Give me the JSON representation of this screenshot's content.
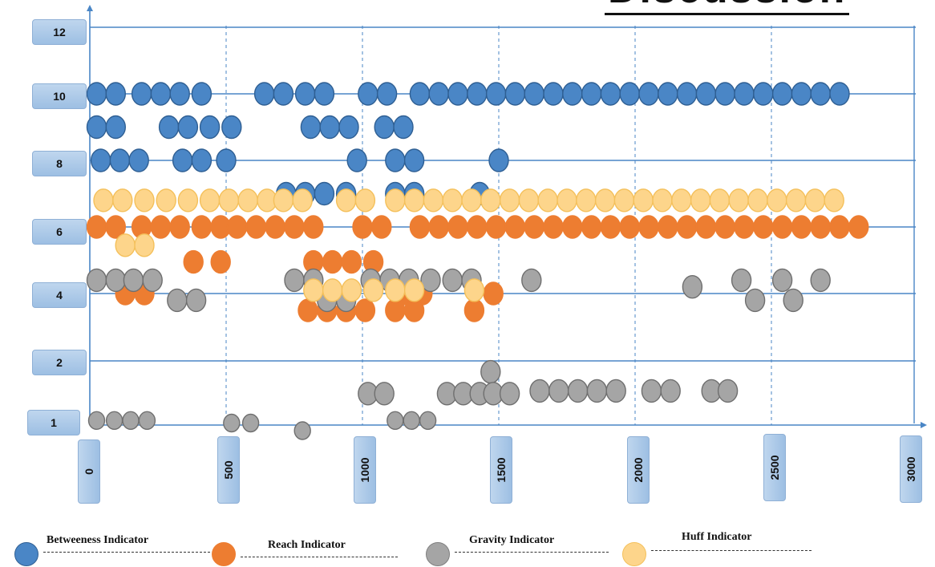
{
  "title_fragment": "Discussion",
  "chart_data": {
    "type": "scatter",
    "x_ticks": [
      "0",
      "500",
      "1000",
      "1500",
      "2000",
      "2500",
      "3000"
    ],
    "y_ticks": [
      "12",
      "10",
      "8",
      "6",
      "4",
      "2",
      "1"
    ],
    "xlim": [
      0,
      3000
    ],
    "series": [
      {
        "name": "Betweeness Indicator",
        "color": "#4a86c6",
        "points": [
          [
            25,
            10
          ],
          [
            95,
            10
          ],
          [
            190,
            10
          ],
          [
            260,
            10
          ],
          [
            330,
            10
          ],
          [
            410,
            10
          ],
          [
            640,
            10
          ],
          [
            710,
            10
          ],
          [
            790,
            10
          ],
          [
            860,
            10
          ],
          [
            1020,
            10
          ],
          [
            1090,
            10
          ],
          [
            1210,
            10
          ],
          [
            1280,
            10
          ],
          [
            1350,
            10
          ],
          [
            1420,
            10
          ],
          [
            1490,
            10
          ],
          [
            1560,
            10
          ],
          [
            1630,
            10
          ],
          [
            1700,
            10
          ],
          [
            1770,
            10
          ],
          [
            1840,
            10
          ],
          [
            1910,
            10
          ],
          [
            1980,
            10
          ],
          [
            2050,
            10
          ],
          [
            2120,
            10
          ],
          [
            2190,
            10
          ],
          [
            2260,
            10
          ],
          [
            2330,
            10
          ],
          [
            2400,
            10
          ],
          [
            2470,
            10
          ],
          [
            2540,
            10
          ],
          [
            2610,
            10
          ],
          [
            2680,
            10
          ],
          [
            2750,
            10
          ],
          [
            25,
            9
          ],
          [
            95,
            9
          ],
          [
            290,
            9
          ],
          [
            360,
            9
          ],
          [
            440,
            9
          ],
          [
            520,
            9
          ],
          [
            810,
            9
          ],
          [
            880,
            9
          ],
          [
            950,
            9
          ],
          [
            1080,
            9
          ],
          [
            1150,
            9
          ],
          [
            40,
            8
          ],
          [
            110,
            8
          ],
          [
            180,
            8
          ],
          [
            340,
            8
          ],
          [
            410,
            8
          ],
          [
            500,
            8
          ],
          [
            980,
            8
          ],
          [
            1120,
            8
          ],
          [
            1190,
            8
          ],
          [
            1500,
            8
          ],
          [
            720,
            7
          ],
          [
            790,
            7
          ],
          [
            860,
            7
          ],
          [
            940,
            7
          ],
          [
            1120,
            7
          ],
          [
            1190,
            7
          ],
          [
            1430,
            7
          ]
        ]
      },
      {
        "name": "Reach Indicator",
        "color": "#ed7d31",
        "points": [
          [
            25,
            6
          ],
          [
            95,
            6
          ],
          [
            190,
            6
          ],
          [
            260,
            6
          ],
          [
            330,
            6
          ],
          [
            410,
            6
          ],
          [
            480,
            6
          ],
          [
            540,
            6
          ],
          [
            610,
            6
          ],
          [
            680,
            6
          ],
          [
            750,
            6
          ],
          [
            820,
            6
          ],
          [
            1000,
            6
          ],
          [
            1070,
            6
          ],
          [
            1210,
            6
          ],
          [
            1280,
            6
          ],
          [
            1350,
            6
          ],
          [
            1420,
            6
          ],
          [
            1490,
            6
          ],
          [
            1560,
            6
          ],
          [
            1630,
            6
          ],
          [
            1700,
            6
          ],
          [
            1770,
            6
          ],
          [
            1840,
            6
          ],
          [
            1910,
            6
          ],
          [
            1980,
            6
          ],
          [
            2050,
            6
          ],
          [
            2120,
            6
          ],
          [
            2190,
            6
          ],
          [
            2260,
            6
          ],
          [
            2330,
            6
          ],
          [
            2400,
            6
          ],
          [
            2470,
            6
          ],
          [
            2540,
            6
          ],
          [
            2610,
            6
          ],
          [
            2680,
            6
          ],
          [
            2750,
            6
          ],
          [
            2820,
            6
          ],
          [
            380,
            4.95
          ],
          [
            480,
            4.95
          ],
          [
            820,
            4.95
          ],
          [
            890,
            4.95
          ],
          [
            960,
            4.95
          ],
          [
            1040,
            4.95
          ],
          [
            130,
            4
          ],
          [
            200,
            4
          ],
          [
            1150,
            4
          ],
          [
            1220,
            4
          ],
          [
            1480,
            4
          ],
          [
            800,
            3.5
          ],
          [
            870,
            3.5
          ],
          [
            940,
            3.5
          ],
          [
            1010,
            3.5
          ],
          [
            1120,
            3.5
          ],
          [
            1190,
            3.5
          ],
          [
            1410,
            3.5
          ]
        ]
      },
      {
        "name": "Gravity Indicator",
        "color": "#a5a5a5",
        "points": [
          [
            25,
            4.4
          ],
          [
            95,
            4.4
          ],
          [
            160,
            4.4
          ],
          [
            230,
            4.4
          ],
          [
            750,
            4.4
          ],
          [
            820,
            4.4
          ],
          [
            1030,
            4.4
          ],
          [
            1100,
            4.4
          ],
          [
            1170,
            4.4
          ],
          [
            1250,
            4.4
          ],
          [
            1330,
            4.4
          ],
          [
            1400,
            4.4
          ],
          [
            1620,
            4.4
          ],
          [
            2390,
            4.4
          ],
          [
            2540,
            4.4
          ],
          [
            2680,
            4.4
          ],
          [
            320,
            3.8
          ],
          [
            390,
            3.8
          ],
          [
            870,
            3.8
          ],
          [
            940,
            3.8
          ],
          [
            2210,
            4.2
          ],
          [
            2440,
            3.8
          ],
          [
            2580,
            3.8
          ],
          [
            1470,
            1.8
          ],
          [
            1020,
            1.4
          ],
          [
            1080,
            1.4
          ],
          [
            1310,
            1.4
          ],
          [
            1370,
            1.4
          ],
          [
            1430,
            1.4
          ],
          [
            1480,
            1.4
          ],
          [
            1540,
            1.4
          ],
          [
            1650,
            1.45
          ],
          [
            1720,
            1.45
          ],
          [
            1790,
            1.45
          ],
          [
            1860,
            1.45
          ],
          [
            1930,
            1.45
          ],
          [
            2060,
            1.45
          ],
          [
            2130,
            1.45
          ],
          [
            2280,
            1.45
          ],
          [
            2340,
            1.45
          ],
          [
            25,
            0.9
          ],
          [
            90,
            0.9
          ],
          [
            150,
            0.9
          ],
          [
            210,
            0.9
          ],
          [
            520,
            0.85
          ],
          [
            590,
            0.85
          ],
          [
            1120,
            0.9
          ],
          [
            1180,
            0.9
          ],
          [
            1240,
            0.9
          ],
          [
            780,
            0.7
          ]
        ]
      },
      {
        "name": "Huff Indicator",
        "color": "#fdd58b",
        "points": [
          [
            50,
            6.8
          ],
          [
            120,
            6.8
          ],
          [
            200,
            6.8
          ],
          [
            280,
            6.8
          ],
          [
            360,
            6.8
          ],
          [
            440,
            6.8
          ],
          [
            510,
            6.8
          ],
          [
            580,
            6.8
          ],
          [
            650,
            6.8
          ],
          [
            710,
            6.8
          ],
          [
            780,
            6.8
          ],
          [
            940,
            6.8
          ],
          [
            1010,
            6.8
          ],
          [
            1120,
            6.8
          ],
          [
            1190,
            6.8
          ],
          [
            1260,
            6.8
          ],
          [
            1330,
            6.8
          ],
          [
            1400,
            6.8
          ],
          [
            1470,
            6.8
          ],
          [
            1540,
            6.8
          ],
          [
            1610,
            6.8
          ],
          [
            1680,
            6.8
          ],
          [
            1750,
            6.8
          ],
          [
            1820,
            6.8
          ],
          [
            1890,
            6.8
          ],
          [
            1960,
            6.8
          ],
          [
            2030,
            6.8
          ],
          [
            2100,
            6.8
          ],
          [
            2170,
            6.8
          ],
          [
            2240,
            6.8
          ],
          [
            2310,
            6.8
          ],
          [
            2380,
            6.8
          ],
          [
            2450,
            6.8
          ],
          [
            2520,
            6.8
          ],
          [
            2590,
            6.8
          ],
          [
            2660,
            6.8
          ],
          [
            2730,
            6.8
          ],
          [
            130,
            5.45
          ],
          [
            200,
            5.45
          ],
          [
            820,
            4.1
          ],
          [
            890,
            4.1
          ],
          [
            960,
            4.1
          ],
          [
            1040,
            4.1
          ],
          [
            1120,
            4.1
          ],
          [
            1190,
            4.1
          ],
          [
            1410,
            4.1
          ]
        ]
      }
    ]
  },
  "legend": [
    {
      "label": "Betweeness Indicator",
      "icon": "blue-circle-icon"
    },
    {
      "label": "Reach Indicator",
      "icon": "orange-circle-icon"
    },
    {
      "label": "Gravity Indicator",
      "icon": "gray-circle-icon"
    },
    {
      "label": "Huff Indicator",
      "icon": "yellow-circle-icon"
    }
  ]
}
